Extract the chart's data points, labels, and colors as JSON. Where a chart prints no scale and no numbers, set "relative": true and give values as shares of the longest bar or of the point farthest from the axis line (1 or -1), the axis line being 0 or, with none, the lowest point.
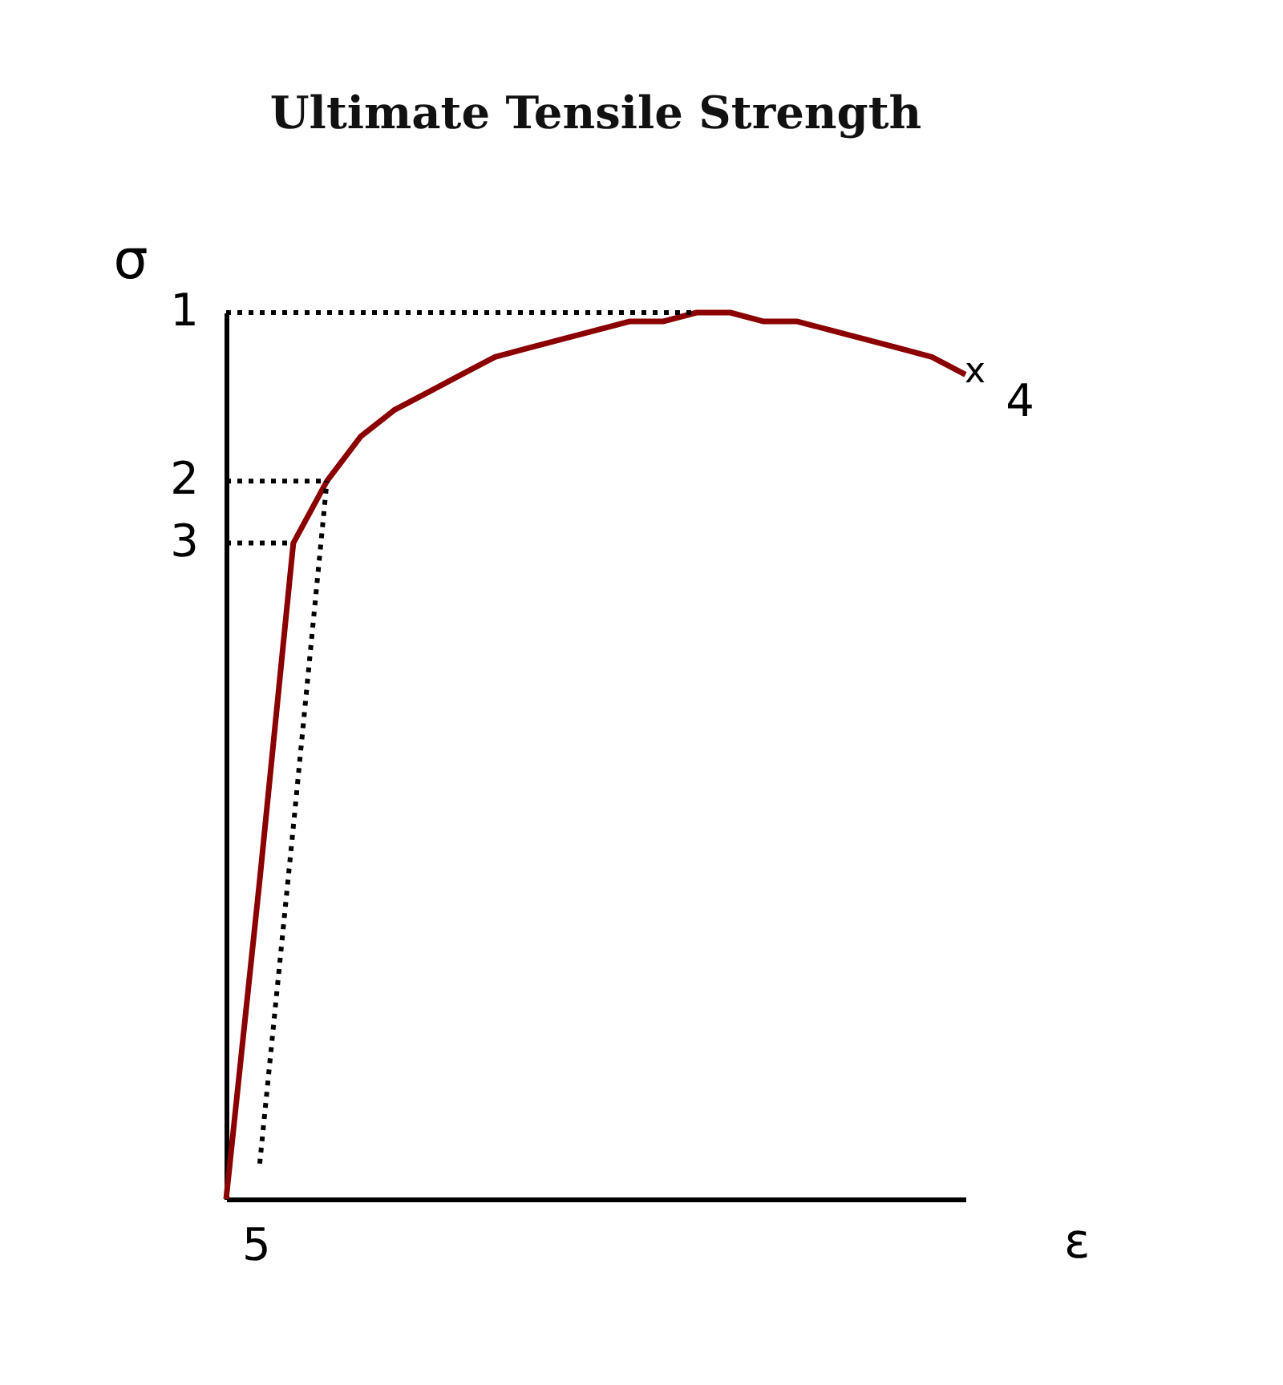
{
  "chart_data": {
    "type": "line",
    "title": "Ultimate Tensile Strength",
    "ylabel": "σ",
    "xlabel": "ε",
    "relative": true,
    "categories": [
      null,
      null,
      null,
      null,
      null,
      null,
      null,
      null,
      null,
      null,
      null,
      null,
      null,
      null,
      null,
      null,
      null,
      null,
      null,
      null,
      null,
      null,
      null
    ],
    "series": [
      {
        "color": "#8b0000",
        "values": [
          0,
          0.36,
          0.74,
          0.81,
          0.86,
          0.89,
          0.91,
          0.93,
          0.95,
          0.96,
          0.97,
          0.98,
          0.99,
          0.99,
          1,
          1,
          0.99,
          0.99,
          0.98,
          0.97,
          0.96,
          0.95,
          0.93
        ]
      },
      {
        "color": "#000000",
        "line_style": "dotted",
        "values": [
          null,
          0.04,
          0.42,
          0.81,
          null,
          null,
          null,
          null,
          null,
          null,
          null,
          null,
          null,
          null,
          null,
          null,
          null,
          null,
          null,
          null,
          null,
          null,
          null
        ]
      },
      {
        "color": "#000000",
        "line_style": "dotted",
        "values": [
          1,
          1,
          1,
          1,
          1,
          1,
          1,
          1,
          1,
          1,
          1,
          1,
          1,
          1,
          1,
          null,
          null,
          null,
          null,
          null,
          null,
          null,
          null
        ]
      },
      {
        "color": "#000000",
        "line_style": "dotted",
        "values": [
          0.81,
          0.81,
          0.81,
          0.81,
          null,
          null,
          null,
          null,
          null,
          null,
          null,
          null,
          null,
          null,
          null,
          null,
          null,
          null,
          null,
          null,
          null,
          null,
          null
        ]
      },
      {
        "color": "#000000",
        "line_style": "dotted",
        "values": [
          0.74,
          0.74,
          0.74,
          null,
          null,
          null,
          null,
          null,
          null,
          null,
          null,
          null,
          null,
          null,
          null,
          null,
          null,
          null,
          null,
          null,
          null,
          null,
          null
        ]
      }
    ],
    "annotations": [
      "1",
      "2",
      "3",
      "x",
      "4",
      "5"
    ]
  }
}
